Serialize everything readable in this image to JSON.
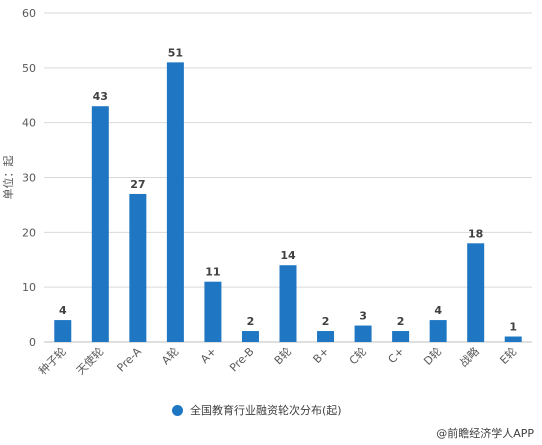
{
  "chart_data": {
    "type": "bar",
    "ylabel": "单位：起",
    "ylim": [
      0,
      60
    ],
    "yticks": [
      0,
      10,
      20,
      30,
      40,
      50,
      60
    ],
    "categories": [
      "种子轮",
      "天使轮",
      "Pre-A",
      "A轮",
      "A+",
      "Pre-B",
      "B轮",
      "B+",
      "C轮",
      "C+",
      "D轮",
      "战略",
      "E轮"
    ],
    "values": [
      4,
      43,
      27,
      51,
      11,
      2,
      14,
      2,
      3,
      2,
      4,
      18,
      1
    ],
    "series": [
      {
        "name": "全国教育行业融资轮次分布(起)",
        "values": [
          4,
          43,
          27,
          51,
          11,
          2,
          14,
          2,
          3,
          2,
          4,
          18,
          1
        ]
      }
    ],
    "grid": true,
    "legend": "bottom",
    "bar_color": "#1f77c4"
  },
  "source": "@前瞻经济学人APP"
}
